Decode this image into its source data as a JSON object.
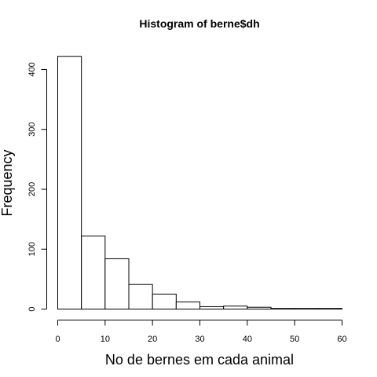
{
  "chart_data": {
    "type": "bar",
    "title": "Histogram of berne$dh",
    "xlabel": "No de bernes em cada animal",
    "ylabel": "Frequency",
    "bins": [
      {
        "start": 0,
        "end": 5,
        "count": 422
      },
      {
        "start": 5,
        "end": 10,
        "count": 122
      },
      {
        "start": 10,
        "end": 15,
        "count": 84
      },
      {
        "start": 15,
        "end": 20,
        "count": 41
      },
      {
        "start": 20,
        "end": 25,
        "count": 25
      },
      {
        "start": 25,
        "end": 30,
        "count": 12
      },
      {
        "start": 30,
        "end": 35,
        "count": 4
      },
      {
        "start": 35,
        "end": 40,
        "count": 5
      },
      {
        "start": 40,
        "end": 45,
        "count": 3
      },
      {
        "start": 45,
        "end": 50,
        "count": 1
      },
      {
        "start": 50,
        "end": 55,
        "count": 1
      },
      {
        "start": 55,
        "end": 60,
        "count": 1
      }
    ],
    "xlim": [
      0,
      60
    ],
    "ylim": [
      0,
      430
    ],
    "x_ticks": [
      0,
      10,
      20,
      30,
      40,
      50,
      60
    ],
    "y_ticks": [
      0,
      100,
      200,
      300,
      400
    ],
    "grid": false,
    "legend": "none"
  }
}
